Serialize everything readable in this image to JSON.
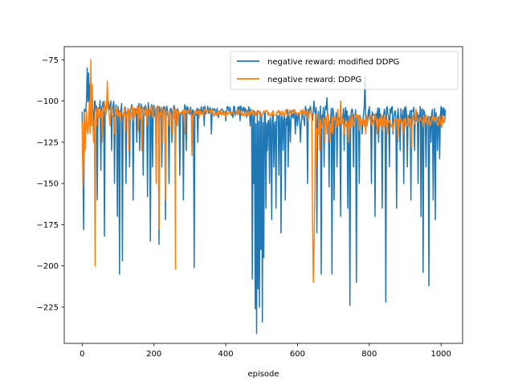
{
  "chart_data": {
    "type": "line",
    "title": "",
    "xlabel": "episode",
    "ylabel": "",
    "xlim": [
      -50,
      1060
    ],
    "ylim": [
      -247,
      -67
    ],
    "x_ticks": [
      0,
      200,
      400,
      600,
      800,
      1000
    ],
    "y_ticks": [
      -225,
      -200,
      -175,
      -150,
      -125,
      -100,
      -75
    ],
    "grid": false,
    "legend_position": "top-right",
    "series": [
      {
        "name": "negative reward: modified DDPG",
        "color": "#1f77b4",
        "segments": [
          {
            "x0": 0,
            "x1": 10,
            "base": -108,
            "jitter": 5,
            "spikes": [
              [
                1,
                -140
              ],
              [
                3,
                -178
              ],
              [
                6,
                -105
              ]
            ]
          },
          {
            "x0": 10,
            "x1": 100,
            "base": -103,
            "jitter": 4,
            "spikes": [
              [
                13,
                -80
              ],
              [
                17,
                -83
              ],
              [
                22,
                -90
              ],
              [
                26,
                -92
              ],
              [
                32,
                -125
              ],
              [
                41,
                -160
              ],
              [
                52,
                -142
              ],
              [
                61,
                -182
              ],
              [
                71,
                -100
              ],
              [
                81,
                -130
              ],
              [
                90,
                -150
              ],
              [
                98,
                -170
              ]
            ]
          },
          {
            "x0": 100,
            "x1": 200,
            "base": -105,
            "jitter": 4,
            "spikes": [
              [
                103,
                -205
              ],
              [
                112,
                -197
              ],
              [
                121,
                -150
              ],
              [
                132,
                -140
              ],
              [
                141,
                -160
              ],
              [
                152,
                -125
              ],
              [
                160,
                -130
              ],
              [
                170,
                -145
              ],
              [
                182,
                -158
              ],
              [
                190,
                -185
              ],
              [
                196,
                -140
              ]
            ]
          },
          {
            "x0": 200,
            "x1": 300,
            "base": -106,
            "jitter": 4,
            "spikes": [
              [
                205,
                -130
              ],
              [
                214,
                -187
              ],
              [
                221,
                -140
              ],
              [
                232,
                -172
              ],
              [
                241,
                -150
              ],
              [
                250,
                -125
              ],
              [
                260,
                -130
              ],
              [
                271,
                -145
              ],
              [
                281,
                -160
              ],
              [
                290,
                -130
              ],
              [
                305,
                -178
              ]
            ]
          },
          {
            "x0": 300,
            "x1": 470,
            "base": -106,
            "jitter": 3,
            "spikes": [
              [
                311,
                -201
              ],
              [
                322,
                -125
              ],
              [
                340,
                -115
              ],
              [
                360,
                -120
              ],
              [
                380,
                -110
              ],
              [
                400,
                -112
              ],
              [
                420,
                -110
              ],
              [
                440,
                -112
              ],
              [
                458,
                -110
              ],
              [
                468,
                -115
              ]
            ]
          },
          {
            "x0": 470,
            "x1": 620,
            "base": -110,
            "jitter": 5,
            "spikes": [
              [
                474,
                -208
              ],
              [
                478,
                -150
              ],
              [
                482,
                -226
              ],
              [
                486,
                -241
              ],
              [
                490,
                -214
              ],
              [
                494,
                -225
              ],
              [
                498,
                -190
              ],
              [
                502,
                -234
              ],
              [
                506,
                -195
              ],
              [
                511,
                -165
              ],
              [
                516,
                -130
              ],
              [
                522,
                -150
              ],
              [
                527,
                -172
              ],
              [
                533,
                -140
              ],
              [
                540,
                -165
              ],
              [
                547,
                -145
              ],
              [
                553,
                -180
              ],
              [
                560,
                -130
              ],
              [
                566,
                -160
              ],
              [
                573,
                -140
              ],
              [
                580,
                -125
              ],
              [
                586,
                -110
              ],
              [
                593,
                -120
              ],
              [
                600,
                -115
              ],
              [
                607,
                -125
              ],
              [
                612,
                -110
              ]
            ]
          },
          {
            "x0": 620,
            "x1": 800,
            "base": -108,
            "jitter": 5,
            "spikes": [
              [
                628,
                -150
              ],
              [
                640,
                -110
              ],
              [
                646,
                -100
              ],
              [
                654,
                -180
              ],
              [
                660,
                -115
              ],
              [
                666,
                -205
              ],
              [
                674,
                -140
              ],
              [
                681,
                -98
              ],
              [
                688,
                -152
              ],
              [
                695,
                -205
              ],
              [
                702,
                -160
              ],
              [
                710,
                -140
              ],
              [
                720,
                -170
              ],
              [
                730,
                -130
              ],
              [
                740,
                -165
              ],
              [
                746,
                -224
              ],
              [
                756,
                -140
              ],
              [
                764,
                -210
              ],
              [
                772,
                -150
              ],
              [
                780,
                -120
              ],
              [
                787,
                -85
              ],
              [
                795,
                -110
              ]
            ]
          },
          {
            "x0": 800,
            "x1": 1012,
            "base": -108,
            "jitter": 5,
            "spikes": [
              [
                806,
                -150
              ],
              [
                816,
                -170
              ],
              [
                826,
                -125
              ],
              [
                836,
                -165
              ],
              [
                846,
                -222
              ],
              [
                856,
                -140
              ],
              [
                866,
                -120
              ],
              [
                876,
                -165
              ],
              [
                886,
                -130
              ],
              [
                896,
                -150
              ],
              [
                906,
                -140
              ],
              [
                916,
                -160
              ],
              [
                926,
                -130
              ],
              [
                936,
                -150
              ],
              [
                944,
                -170
              ],
              [
                950,
                -204
              ],
              [
                958,
                -140
              ],
              [
                966,
                -212
              ],
              [
                972,
                -125
              ],
              [
                978,
                -160
              ],
              [
                984,
                -172
              ],
              [
                990,
                -130
              ],
              [
                996,
                -135
              ],
              [
                1002,
                -115
              ]
            ]
          }
        ]
      },
      {
        "name": "negative reward: DDPG",
        "color": "#ff7f0e",
        "segments": [
          {
            "x0": 0,
            "x1": 40,
            "base": -112,
            "jitter": 8,
            "spikes": [
              [
                1,
                -152
              ],
              [
                4,
                -135
              ],
              [
                8,
                -130
              ],
              [
                12,
                -105
              ],
              [
                16,
                -120
              ],
              [
                20,
                -100
              ],
              [
                24,
                -75
              ],
              [
                28,
                -90
              ],
              [
                32,
                -125
              ],
              [
                36,
                -200
              ],
              [
                40,
                -115
              ]
            ]
          },
          {
            "x0": 40,
            "x1": 260,
            "base": -107,
            "jitter": 4,
            "spikes": [
              [
                48,
                -110
              ],
              [
                55,
                -125
              ],
              [
                62,
                -100
              ],
              [
                70,
                -88
              ],
              [
                78,
                -115
              ],
              [
                90,
                -120
              ],
              [
                105,
                -112
              ],
              [
                120,
                -118
              ],
              [
                130,
                -130
              ],
              [
                142,
                -112
              ],
              [
                155,
                -118
              ],
              [
                165,
                -130
              ],
              [
                180,
                -115
              ],
              [
                195,
                -110
              ],
              [
                205,
                -150
              ],
              [
                214,
                -178
              ],
              [
                223,
                -125
              ],
              [
                232,
                -160
              ],
              [
                241,
                -115
              ],
              [
                252,
                -120
              ],
              [
                260,
                -202
              ]
            ]
          },
          {
            "x0": 260,
            "x1": 640,
            "base": -107,
            "jitter": 2,
            "spikes": [
              [
                265,
                -115
              ],
              [
                285,
                -120
              ],
              [
                305,
                -133
              ],
              [
                325,
                -110
              ],
              [
                360,
                -108
              ],
              [
                400,
                -110
              ],
              [
                450,
                -108
              ],
              [
                500,
                -109
              ],
              [
                550,
                -108
              ],
              [
                600,
                -108
              ],
              [
                630,
                -112
              ]
            ]
          },
          {
            "x0": 640,
            "x1": 700,
            "base": -113,
            "jitter": 6,
            "spikes": [
              [
                641,
                -175
              ],
              [
                643,
                -210
              ],
              [
                645,
                -190
              ],
              [
                648,
                -160
              ],
              [
                652,
                -140
              ],
              [
                657,
                -120
              ],
              [
                662,
                -130
              ],
              [
                668,
                -115
              ],
              [
                675,
                -125
              ],
              [
                682,
                -120
              ],
              [
                690,
                -125
              ],
              [
                697,
                -120
              ]
            ]
          },
          {
            "x0": 700,
            "x1": 1012,
            "base": -112,
            "jitter": 4,
            "spikes": [
              [
                705,
                -110
              ],
              [
                712,
                -105
              ],
              [
                720,
                -100
              ],
              [
                730,
                -120
              ],
              [
                742,
                -125
              ],
              [
                756,
                -115
              ],
              [
                772,
                -118
              ],
              [
                790,
                -120
              ],
              [
                808,
                -115
              ],
              [
                822,
                -120
              ],
              [
                836,
                -118
              ],
              [
                850,
                -120
              ],
              [
                866,
                -118
              ],
              [
                880,
                -125
              ],
              [
                894,
                -120
              ],
              [
                906,
                -115
              ],
              [
                918,
                -128
              ],
              [
                930,
                -105
              ],
              [
                942,
                -110
              ],
              [
                956,
                -112
              ],
              [
                970,
                -115
              ],
              [
                984,
                -110
              ],
              [
                998,
                -112
              ],
              [
                1008,
                -113
              ]
            ]
          }
        ]
      }
    ]
  }
}
